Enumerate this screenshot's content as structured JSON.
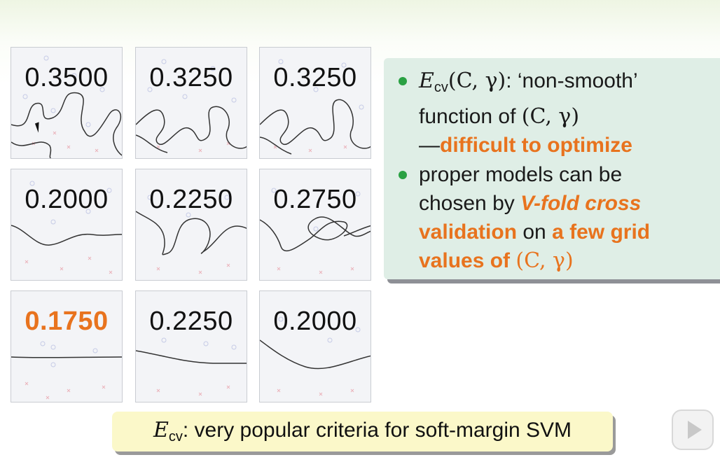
{
  "panels": [
    {
      "value": "0.3500",
      "best": false
    },
    {
      "value": "0.3250",
      "best": false
    },
    {
      "value": "0.3250",
      "best": false
    },
    {
      "value": "0.2000",
      "best": false
    },
    {
      "value": "0.2250",
      "best": false
    },
    {
      "value": "0.2750",
      "best": false
    },
    {
      "value": "0.1750",
      "best": true
    },
    {
      "value": "0.2250",
      "best": false
    },
    {
      "value": "0.2000",
      "best": false
    }
  ],
  "callout": {
    "bullet1": {
      "e": "E",
      "e_sub": "cv",
      "args": "(C, γ)",
      "text1": ": ‘non-smooth’",
      "text2": "function of ",
      "args2": "(C, γ)",
      "dash": "—",
      "highlight": "difficult to optimize"
    },
    "bullet2": {
      "t1": "proper models can be",
      "t2": "chosen by ",
      "h1": "V-fold cross",
      "h2": "validation",
      "t3": " on ",
      "h3": "a few grid",
      "h4": "values of ",
      "h5": "(C, γ)"
    }
  },
  "banner": {
    "e": "E",
    "e_sub": "cv",
    "text": ": very popular criteria for soft-margin SVM"
  },
  "colors": {
    "accent": "#e8731e",
    "bullet": "#2aa143",
    "callout_bg": "#dfeee6",
    "banner_bg": "#fbf8c9"
  },
  "icons": {
    "play": "play-icon",
    "cursor": "mouse-cursor-icon"
  }
}
